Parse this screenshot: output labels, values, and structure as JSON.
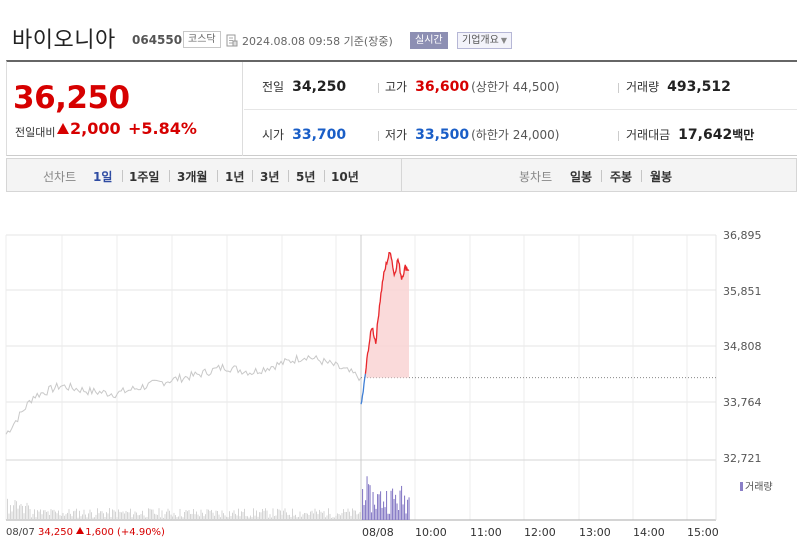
{
  "header": {
    "name": "바이오니아",
    "code": "064550",
    "market": "코스닥",
    "date": "2024.08.08 09:58  기준(장중)",
    "realtime_label": "실시간",
    "company_label": "기업개요"
  },
  "price": {
    "current": "36,250",
    "change_label": "전일대비",
    "change": "2,000",
    "change_pct": "+5.84%"
  },
  "info": {
    "prev_close_label": "전일",
    "prev_close": "34,250",
    "high_label": "고가",
    "high": "36,600",
    "upper_limit": "(상한가 44,500)",
    "volume_label": "거래량",
    "volume": "493,512",
    "open_label": "시가",
    "open": "33,700",
    "low_label": "저가",
    "low": "33,500",
    "lower_limit": "(하한가 24,000)",
    "trade_value_label": "거래대금",
    "trade_value": "17,642",
    "trade_value_unit": "백만"
  },
  "tabs": {
    "line_label": "선차트",
    "line_items": [
      "1일",
      "1주일",
      "3개월",
      "1년",
      "3년",
      "5년",
      "10년"
    ],
    "active": "1일",
    "candle_label": "봉차트",
    "candle_items": [
      "일봉",
      "주봉",
      "월봉"
    ]
  },
  "chart": {
    "y_ticks": [
      "36,895",
      "35,851",
      "34,808",
      "33,764",
      "32,721"
    ],
    "x_ticks": [
      "08/08",
      "10:00",
      "11:00",
      "12:00",
      "13:00",
      "14:00",
      "15:00"
    ],
    "volume_legend": "거래량",
    "prev_day_label": "08/07",
    "prev_day_price": "34,250",
    "prev_day_change": "1,600 (+4.90%)",
    "colors": {
      "up": "#e8262b",
      "down": "#3f7fd6",
      "prev_line": "#c8c8c8",
      "volume": "#8a7fc7"
    }
  },
  "chart_data": [
    {
      "type": "line",
      "title": "",
      "x_label": "",
      "y_label": "",
      "ylim": [
        32721,
        36895
      ],
      "series": [
        {
          "x": [
            "08/07 09:00",
            "08/07 09:30",
            "08/07 10:00",
            "08/07 10:30",
            "08/07 11:00",
            "08/07 11:30",
            "08/07 12:00",
            "08/07 12:30",
            "08/07 13:00",
            "08/07 13:30",
            "08/07 14:00",
            "08/07 14:30",
            "08/07 15:00",
            "08/07 15:30"
          ],
          "values": [
            33200,
            33900,
            34100,
            34000,
            33950,
            34080,
            34200,
            34300,
            34450,
            34350,
            34500,
            34650,
            34480,
            34250
          ]
        },
        {
          "x": [
            "08/08 09:00",
            "08/08 09:02",
            "08/08 09:05",
            "08/08 09:10",
            "08/08 09:15",
            "08/08 09:20",
            "08/08 09:25",
            "08/08 09:30",
            "08/08 09:35",
            "08/08 09:40",
            "08/08 09:45",
            "08/08 09:50",
            "08/08 09:55",
            "08/08 09:58"
          ],
          "values": [
            33700,
            34200,
            34800,
            35200,
            34900,
            35600,
            36100,
            36400,
            36600,
            36150,
            36450,
            36100,
            36300,
            36250
          ]
        }
      ],
      "baseline": 34250,
      "grid": true
    }
  ]
}
